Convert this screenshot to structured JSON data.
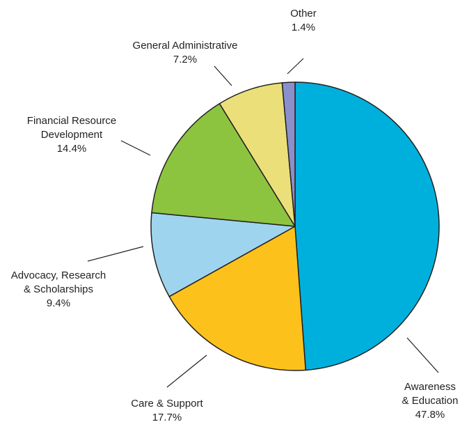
{
  "chart_data": {
    "type": "pie",
    "slices": [
      {
        "label_lines": [
          "Awareness",
          "& Education"
        ],
        "value": 47.8,
        "value_label": "47.8%",
        "color": "#00b0dc"
      },
      {
        "label_lines": [
          "Care & Support"
        ],
        "value": 17.7,
        "value_label": "17.7%",
        "color": "#fcc21b"
      },
      {
        "label_lines": [
          "Advocacy, Research",
          "& Scholarships"
        ],
        "value": 9.4,
        "value_label": "9.4%",
        "color": "#9fd4ee"
      },
      {
        "label_lines": [
          "Financial Resource",
          "Development"
        ],
        "value": 14.4,
        "value_label": "14.4%",
        "color": "#8cc43f"
      },
      {
        "label_lines": [
          "General Administrative"
        ],
        "value": 7.2,
        "value_label": "7.2%",
        "color": "#ebdf7a"
      },
      {
        "label_lines": [
          "Other"
        ],
        "value": 1.4,
        "value_label": "1.4%",
        "color": "#8a90cc"
      }
    ],
    "start": "12 o'clock",
    "direction": "clockwise"
  }
}
